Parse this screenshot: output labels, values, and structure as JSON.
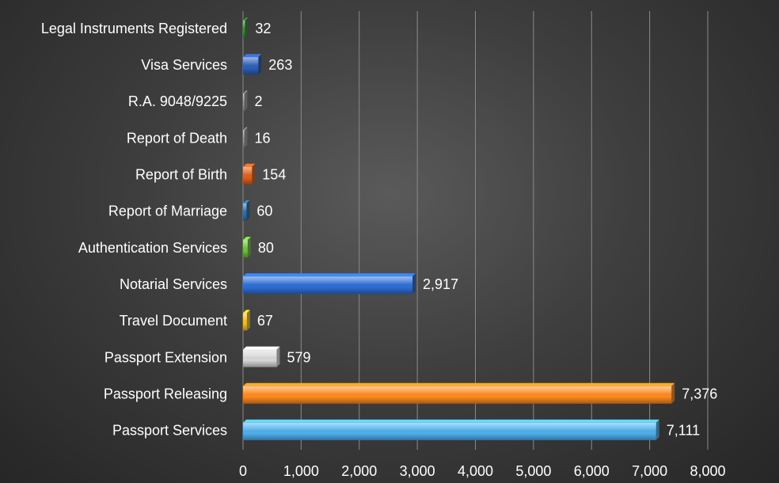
{
  "chart_data": {
    "type": "bar",
    "orientation": "horizontal",
    "categories": [
      "Legal Instruments Registered",
      "Visa Services",
      "R.A. 9048/9225",
      "Report of Death",
      "Report of Birth",
      "Report of Marriage",
      "Authentication Services",
      "Notarial Services",
      "Travel Document",
      "Passport Extension",
      "Passport Releasing",
      "Passport Services"
    ],
    "values": [
      32,
      263,
      2,
      16,
      154,
      60,
      80,
      2917,
      67,
      579,
      7376,
      7111
    ],
    "value_labels": [
      "32",
      "263",
      "2",
      "16",
      "154",
      "60",
      "80",
      "2,917",
      "67",
      "579",
      "7,376",
      "7,111"
    ],
    "bar_colors": [
      "#3a8a3a",
      "#2e5fb8",
      "#9a9a9a",
      "#9a9a9a",
      "#e0601a",
      "#2f6fa8",
      "#6fc23a",
      "#2e6ed6",
      "#f0c020",
      "#d9d9d9",
      "#ff8a1e",
      "#4fb0ee"
    ],
    "xlim": [
      0,
      8000
    ],
    "xticks": [
      0,
      1000,
      2000,
      3000,
      4000,
      5000,
      6000,
      7000,
      8000
    ],
    "xtick_labels": [
      "0",
      "1,000",
      "2,000",
      "3,000",
      "4,000",
      "5,000",
      "6,000",
      "7,000",
      "8,000"
    ],
    "title": "",
    "xlabel": "",
    "ylabel": "",
    "grid": true,
    "legend": false
  }
}
